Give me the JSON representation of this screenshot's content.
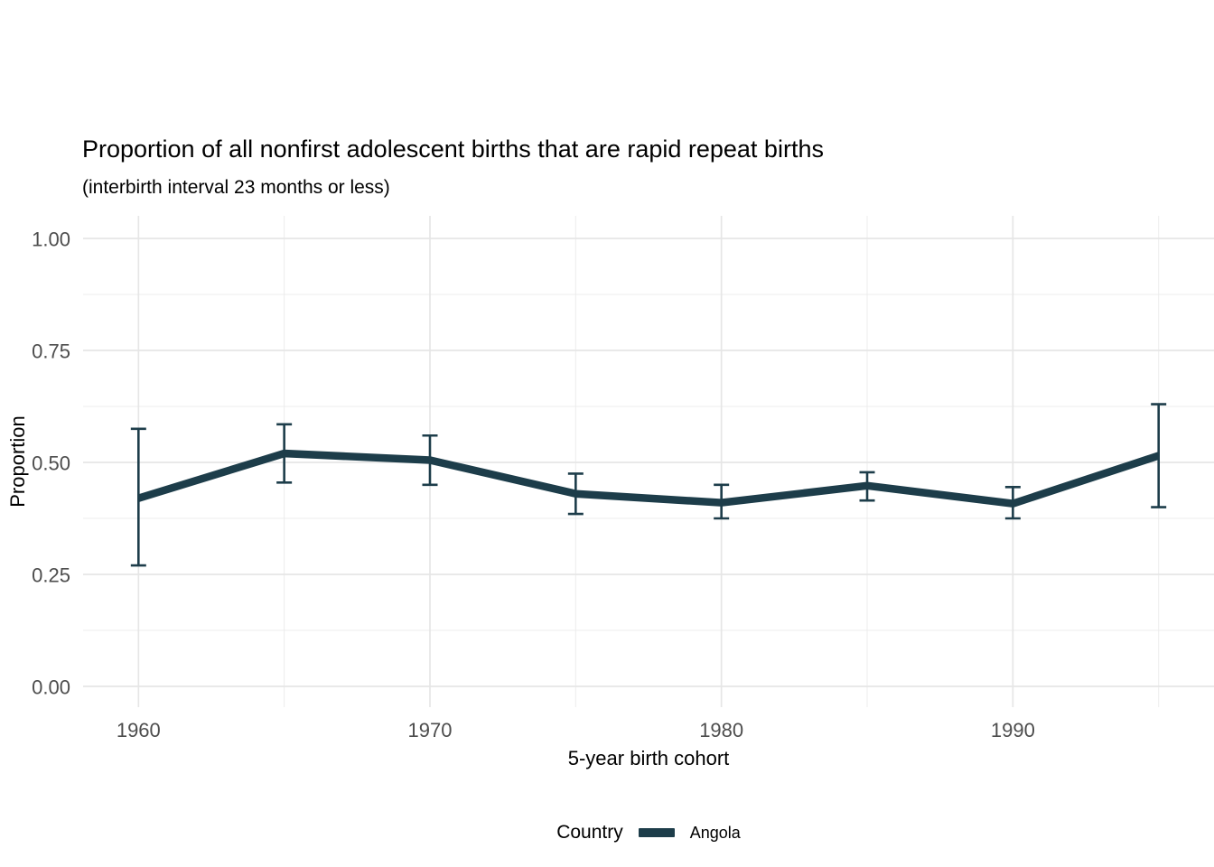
{
  "chart_data": {
    "type": "line",
    "title": "Proportion of all nonfirst adolescent births that are rapid repeat births",
    "subtitle": "(interbirth interval 23 months or less)",
    "xlabel": "5-year birth cohort",
    "ylabel": "Proportion",
    "x": [
      1960,
      1965,
      1970,
      1975,
      1980,
      1985,
      1990,
      1995
    ],
    "series": [
      {
        "name": "Angola",
        "values": [
          0.42,
          0.52,
          0.505,
          0.43,
          0.41,
          0.448,
          0.408,
          0.515
        ],
        "ci_low": [
          0.27,
          0.455,
          0.45,
          0.385,
          0.375,
          0.415,
          0.375,
          0.4
        ],
        "ci_high": [
          0.575,
          0.585,
          0.56,
          0.475,
          0.45,
          0.478,
          0.445,
          0.63
        ]
      }
    ],
    "xlim": [
      1958.1,
      1996.9
    ],
    "ylim": [
      0,
      1
    ],
    "xticks": [
      1960,
      1970,
      1980,
      1990
    ],
    "xtick_labels": [
      "1960",
      "1970",
      "1980",
      "1990"
    ],
    "xticks_minor": [
      1965,
      1975,
      1985,
      1995
    ],
    "yticks": [
      0,
      0.25,
      0.5,
      0.75,
      1
    ],
    "ytick_labels": [
      "0.00",
      "0.25",
      "0.50",
      "0.75",
      "1.00"
    ],
    "yticks_minor": [
      0.125,
      0.375,
      0.625,
      0.875
    ],
    "grid": "on",
    "legend": {
      "title": "Country",
      "position": "bottom",
      "entries": [
        {
          "label": "Angola",
          "color": "#1d3d4a"
        }
      ]
    },
    "colors": {
      "line": "#1d3d4a",
      "grid_major": "#e6e6e6",
      "grid_minor": "#ececec",
      "tick_text": "#4d4d4d",
      "background": "#ffffff"
    }
  }
}
